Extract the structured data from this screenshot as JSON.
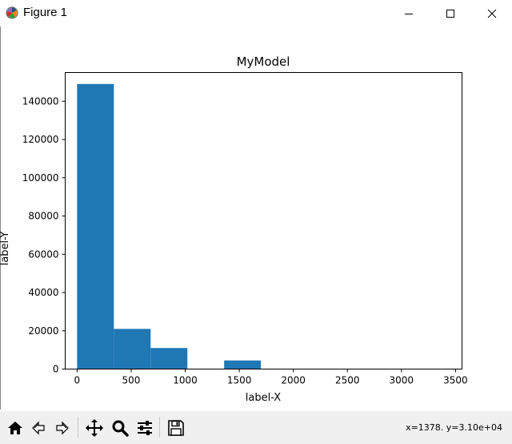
{
  "window": {
    "title": "Figure 1",
    "controls": [
      "minimize",
      "maximize",
      "close"
    ]
  },
  "toolbar": {
    "buttons": [
      "home-icon",
      "back-icon",
      "forward-icon",
      "pan-icon",
      "zoom-icon",
      "configure-subplots-icon",
      "save-icon"
    ],
    "coords_readout": "x=1378. y=3.10e+04"
  },
  "colors": {
    "bar": "#1f77b4",
    "toolbar_bg": "#f0f0f0"
  },
  "chart_data": {
    "type": "bar",
    "title": "MyModel",
    "xlabel": "label-X",
    "ylabel": "label-Y",
    "xlim": [
      -110,
      3560
    ],
    "ylim": [
      0,
      155000
    ],
    "xticks": [
      0,
      500,
      1000,
      1500,
      2000,
      2500,
      3000,
      3500
    ],
    "yticks": [
      0,
      20000,
      40000,
      60000,
      80000,
      100000,
      120000,
      140000
    ],
    "xtick_labels": [
      "0",
      "500",
      "1000",
      "1500",
      "2000",
      "2500",
      "3000",
      "3500"
    ],
    "ytick_labels": [
      "0",
      "20000",
      "40000",
      "60000",
      "80000",
      "100000",
      "120000",
      "140000"
    ],
    "bins": [
      {
        "x0": 0,
        "x1": 340,
        "value": 149000
      },
      {
        "x0": 340,
        "x1": 680,
        "value": 21000
      },
      {
        "x0": 680,
        "x1": 1020,
        "value": 11000
      },
      {
        "x0": 1020,
        "x1": 1360,
        "value": 0
      },
      {
        "x0": 1360,
        "x1": 1700,
        "value": 4500
      },
      {
        "x0": 1700,
        "x1": 2040,
        "value": 0
      },
      {
        "x0": 2040,
        "x1": 2380,
        "value": 0
      },
      {
        "x0": 2380,
        "x1": 2720,
        "value": 0
      },
      {
        "x0": 2720,
        "x1": 3060,
        "value": 0
      },
      {
        "x0": 3060,
        "x1": 3400,
        "value": 0
      }
    ],
    "grid": false,
    "legend": "none"
  }
}
